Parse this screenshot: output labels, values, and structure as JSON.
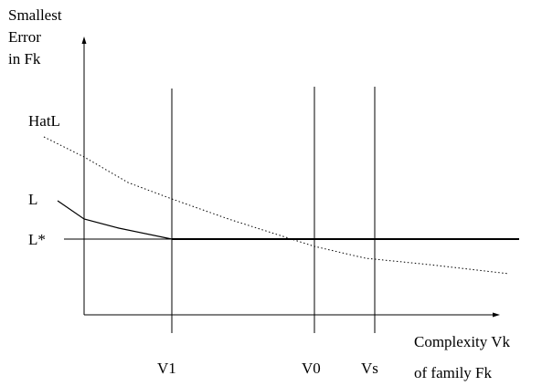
{
  "diagram": {
    "y_axis_label": [
      "Smallest",
      "Error",
      "in Fk"
    ],
    "x_axis_label": [
      "Complexity Vk",
      "of family Fk"
    ],
    "curve_labels": {
      "hat_l": "HatL",
      "l": "L",
      "l_star": "L*"
    },
    "vertical_markers": {
      "v1": "V1",
      "v0": "V0",
      "vs": "Vs"
    }
  }
}
